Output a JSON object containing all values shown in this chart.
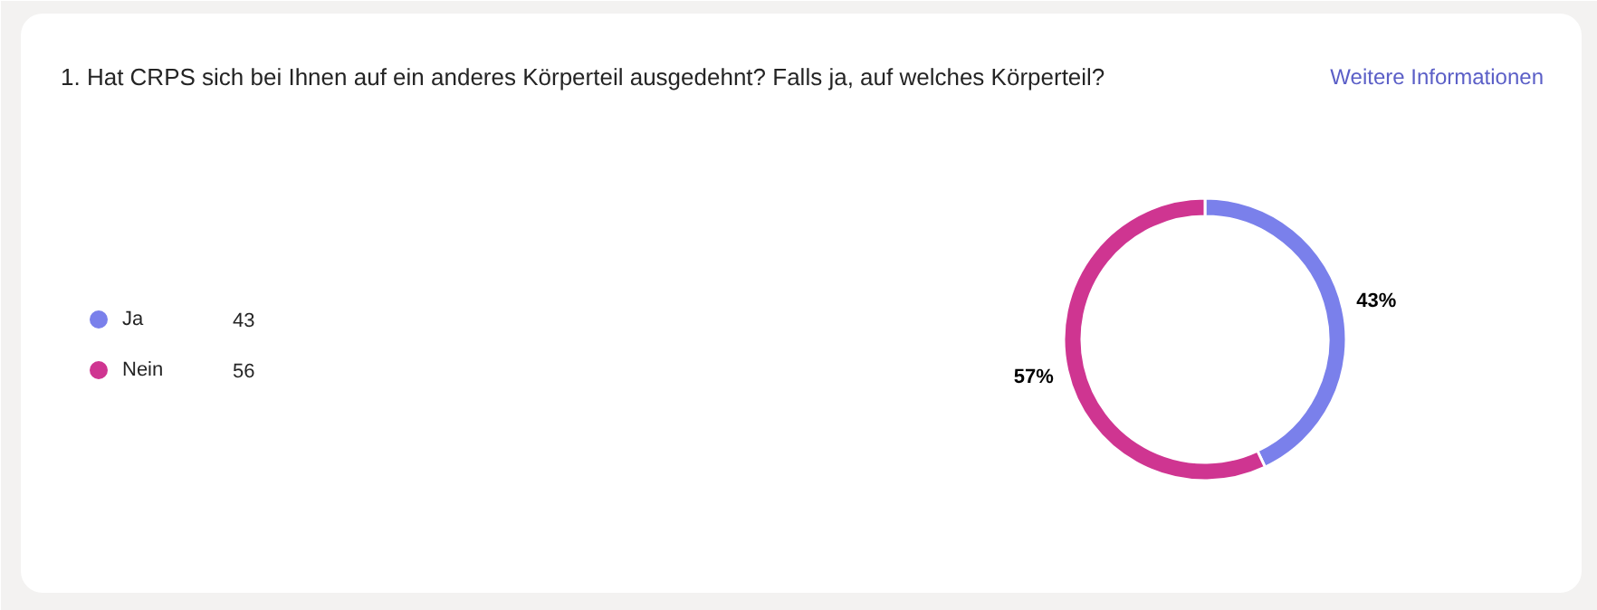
{
  "chart_data": {
    "type": "donut",
    "title": "1. Hat CRPS sich bei Ihnen auf ein anderes Körperteil ausgedehnt? Falls ja, auf welches Körperteil?",
    "categories": [
      "Ja",
      "Nein"
    ],
    "values": [
      43,
      57
    ],
    "colors": [
      "#7a80eb",
      "#cf3591"
    ],
    "value_labels": [
      "43%",
      "57%"
    ],
    "legend": "left",
    "annotations": [
      "Weitere Informationen",
      "43",
      "56"
    ]
  }
}
